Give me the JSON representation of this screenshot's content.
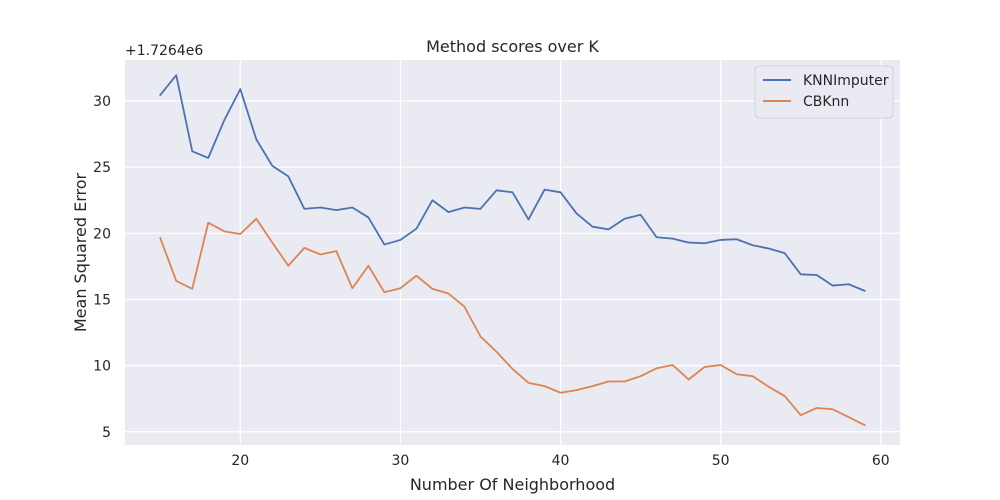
{
  "chart_data": {
    "type": "line",
    "title": "Method scores over K",
    "xlabel": "Number Of Neighborhood",
    "ylabel": "Mean Squared Error",
    "y_offset_text": "+1.7264e6",
    "xlim": [
      12.8,
      61.2
    ],
    "ylim": [
      4.0,
      33.1
    ],
    "xticks": [
      20,
      30,
      40,
      50,
      60
    ],
    "yticks": [
      5,
      10,
      15,
      20,
      25,
      30
    ],
    "grid": true,
    "legend_position": "top-right",
    "x": [
      15,
      16,
      17,
      18,
      19,
      20,
      21,
      22,
      23,
      24,
      25,
      26,
      27,
      28,
      29,
      30,
      31,
      32,
      33,
      34,
      35,
      36,
      37,
      38,
      39,
      40,
      41,
      42,
      43,
      44,
      45,
      46,
      47,
      48,
      49,
      50,
      51,
      52,
      53,
      54,
      55,
      56,
      57,
      58,
      59
    ],
    "series": [
      {
        "name": "KNNImputer",
        "color": "#4c72b0",
        "values": [
          30.45,
          31.95,
          26.2,
          25.7,
          28.55,
          30.9,
          27.1,
          25.1,
          24.3,
          21.85,
          21.95,
          21.75,
          21.95,
          21.2,
          19.15,
          19.5,
          20.35,
          22.5,
          21.6,
          21.95,
          21.85,
          23.25,
          23.1,
          21.05,
          23.3,
          23.1,
          21.5,
          20.5,
          20.3,
          21.1,
          21.4,
          19.7,
          19.6,
          19.3,
          19.25,
          19.5,
          19.55,
          19.1,
          18.85,
          18.5,
          16.9,
          16.85,
          16.05,
          16.15,
          15.65
        ]
      },
      {
        "name": "CBKnn",
        "color": "#dd8452",
        "values": [
          19.65,
          16.4,
          15.8,
          20.8,
          20.15,
          19.95,
          21.1,
          19.3,
          17.55,
          18.9,
          18.4,
          18.65,
          15.85,
          17.55,
          15.55,
          15.85,
          16.8,
          15.8,
          15.45,
          14.45,
          12.2,
          11.05,
          9.75,
          8.7,
          8.45,
          7.95,
          8.15,
          8.45,
          8.8,
          8.8,
          9.2,
          9.8,
          10.05,
          8.95,
          9.9,
          10.05,
          9.35,
          9.2,
          8.4,
          7.7,
          6.25,
          6.8,
          6.7,
          6.1,
          5.5
        ]
      }
    ]
  }
}
